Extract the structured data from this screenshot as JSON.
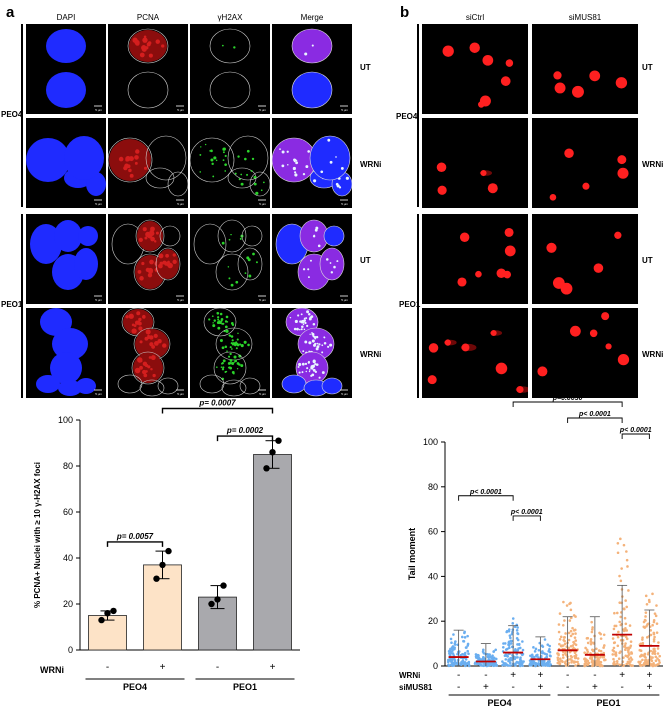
{
  "panel_a": {
    "letter": "a",
    "columns": [
      "DAPI",
      "PCNA",
      "γH2AX",
      "Merge"
    ],
    "groups": [
      {
        "name": "PEO4",
        "rows": [
          "UT",
          "WRNi"
        ]
      },
      {
        "name": "PEO1",
        "rows": [
          "UT",
          "WRNi"
        ]
      }
    ],
    "scale_text": "5 μm"
  },
  "panel_b": {
    "letter": "b",
    "columns": [
      "siCtrl",
      "siMUS81"
    ],
    "groups": [
      {
        "name": "PEO4",
        "rows": [
          "UT",
          "WRNi"
        ]
      },
      {
        "name": "PEO1",
        "rows": [
          "UT",
          "WRNi"
        ]
      }
    ]
  },
  "colors": {
    "dapi": "#1f2bff",
    "pcna": "#d41e1e",
    "h2ax": "#2bd42b",
    "comet": "#ff2020",
    "bar_peo4": "#fde3c7",
    "bar_peo1": "#a9a9ad",
    "dots_blue": "#6aaef0",
    "dots_orange": "#f4b27a",
    "median_red": "#c00000"
  },
  "chart_data": [
    {
      "type": "bar",
      "ylabel": "% PCNA+ Nuclei with ≥ 10 γ-H2AX foci",
      "ylim": [
        0,
        100
      ],
      "yticks": [
        0,
        20,
        40,
        60,
        80,
        100
      ],
      "categories": [
        "PEO4 -",
        "PEO4 +",
        "PEO1 -",
        "PEO1 +"
      ],
      "values": [
        15,
        37,
        23,
        85
      ],
      "errors": [
        2,
        6,
        5,
        6
      ],
      "points": [
        [
          13,
          16,
          17
        ],
        [
          31,
          37,
          43
        ],
        [
          20,
          22,
          28
        ],
        [
          79,
          86,
          91
        ]
      ],
      "row_label": "WRNi",
      "signs": [
        "-",
        "+",
        "-",
        "+"
      ],
      "groups": [
        "PEO4",
        "PEO1"
      ],
      "pvalues": [
        {
          "text": "p= 0.0057",
          "from": 0,
          "to": 1
        },
        {
          "text": "p= 0.0002",
          "from": 2,
          "to": 3
        },
        {
          "text": "p= 0.0007",
          "from": 1,
          "to": 3
        }
      ]
    },
    {
      "type": "scatter",
      "ylabel": "Tail moment",
      "ylim": [
        0,
        100
      ],
      "yticks": [
        0,
        20,
        40,
        60,
        80,
        100
      ],
      "categories": [
        "PEO4 - -",
        "PEO4 - +",
        "PEO4 + -",
        "PEO4 + +",
        "PEO1 - -",
        "PEO1 - +",
        "PEO1 + -",
        "PEO1 + +"
      ],
      "medians": [
        4,
        2,
        6,
        3,
        7,
        5,
        14,
        9
      ],
      "sd_upper": [
        16,
        10,
        18,
        13,
        22,
        22,
        36,
        25
      ],
      "row_labels": [
        "WRNi",
        "siMUS81"
      ],
      "wrni_signs": [
        "-",
        "-",
        "+",
        "+",
        "-",
        "-",
        "+",
        "+"
      ],
      "simus81_signs": [
        "-",
        "+",
        "-",
        "+",
        "-",
        "+",
        "-",
        "+"
      ],
      "groups": [
        "PEO4",
        "PEO1"
      ],
      "pvalues": [
        {
          "text": "p< 0.0001",
          "from": 0,
          "to": 2
        },
        {
          "text": "p< 0.0001",
          "from": 2,
          "to": 3
        },
        {
          "text": "p=0.0030",
          "from": 2,
          "to": 6
        },
        {
          "text": "p< 0.0001",
          "from": 4,
          "to": 6
        },
        {
          "text": "p< 0.0001",
          "from": 6,
          "to": 7
        }
      ]
    }
  ]
}
